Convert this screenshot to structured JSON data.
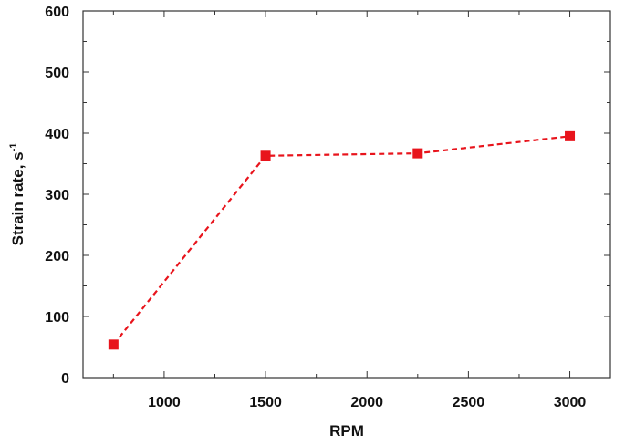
{
  "chart_data": {
    "type": "line",
    "title": "",
    "xlabel": "RPM",
    "ylabel_main": "Strain rate, s",
    "ylabel_sup": "-1",
    "xlim": [
      600,
      3200
    ],
    "ylim": [
      0,
      600
    ],
    "x_ticks": [
      1000,
      1500,
      2000,
      2500,
      3000
    ],
    "y_ticks": [
      0,
      100,
      200,
      300,
      400,
      500,
      600
    ],
    "grid": false,
    "legend": "none",
    "series": [
      {
        "x": [
          750,
          1500,
          2250,
          3000
        ],
        "values": [
          54,
          363,
          367,
          395
        ],
        "color": "#e8141c",
        "line_style": "dashed",
        "marker": "square"
      }
    ]
  }
}
